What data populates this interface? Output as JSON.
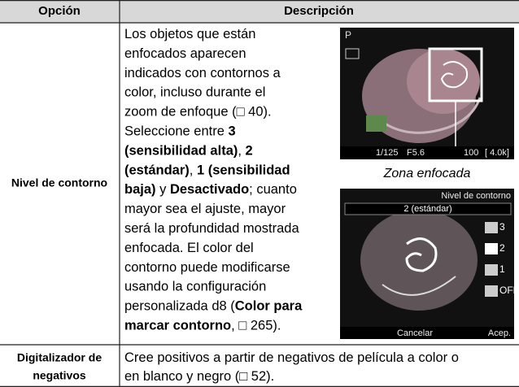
{
  "table": {
    "header": [
      "Opción",
      "Descripción"
    ],
    "rows": [
      {
        "label": "Nivel de contorno",
        "lines": [
          [
            {
              "text": "Los objetos que están",
              "bold": false
            }
          ],
          [
            {
              "text": "enfocados aparecen",
              "bold": false
            }
          ],
          [
            {
              "text": "indicados con contornos a",
              "bold": false
            }
          ],
          [
            {
              "text": "color, incluso durante el",
              "bold": false
            }
          ],
          [
            {
              "text": "zoom de enfoque (□ 40).",
              "bold": false
            }
          ],
          [
            {
              "text": "Seleccione entre ",
              "bold": false
            },
            {
              "text": "3",
              "bold": true
            }
          ],
          [
            {
              "text": "(sensibilidad alta)",
              "bold": true
            },
            {
              "text": ", ",
              "bold": false
            },
            {
              "text": "2",
              "bold": true
            }
          ],
          [
            {
              "text": "(estándar)",
              "bold": true
            },
            {
              "text": ", ",
              "bold": false
            },
            {
              "text": "1 (sensibilidad",
              "bold": true
            }
          ],
          [
            {
              "text": "baja)",
              "bold": true
            },
            {
              "text": " y ",
              "bold": false
            },
            {
              "text": "Desactivado",
              "bold": true
            },
            {
              "text": "; cuanto",
              "bold": false
            }
          ],
          [
            {
              "text": "mayor sea el ajuste, mayor",
              "bold": false
            }
          ],
          [
            {
              "text": "será la profundidad mostrada",
              "bold": false
            }
          ],
          [
            {
              "text": "enfocada. El color del",
              "bold": false
            }
          ],
          [
            {
              "text": "contorno puede modificarse",
              "bold": false
            }
          ],
          [
            {
              "text": "usando la configuración",
              "bold": false
            }
          ],
          [
            {
              "text": "personalizada d8 (",
              "bold": false
            },
            {
              "text": "Color para",
              "bold": true
            }
          ],
          [
            {
              "text": "marcar contorno",
              "bold": true
            },
            {
              "text": ", □ 265).",
              "bold": false
            }
          ]
        ]
      },
      {
        "label": [
          "Digitalizador de",
          "negativos"
        ],
        "lines": [
          [
            {
              "text": "Cree positivos a partir de negativos de película a color o",
              "bold": false
            }
          ],
          [
            {
              "text": "en blanco y negro (□ 52).",
              "bold": false
            }
          ]
        ]
      }
    ]
  },
  "screen1": {
    "mode": "P",
    "shutter": "1/125",
    "aperture": "F5.6",
    "iso": "100",
    "shots": "[ 4.0k]",
    "caption": "Zona enfocada"
  },
  "screen2": {
    "title": "Nivel de contorno",
    "selected": "2 (estándar)",
    "options": [
      "3",
      "2",
      "1",
      "OFF"
    ],
    "cancel": "Cancelar",
    "ok": "Acep."
  }
}
